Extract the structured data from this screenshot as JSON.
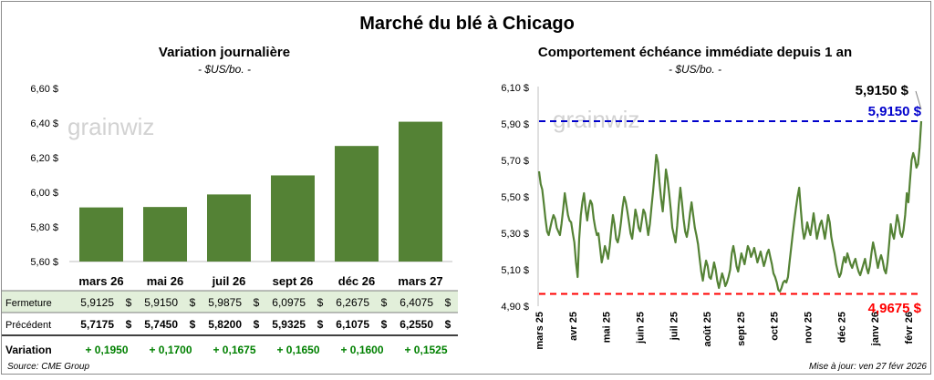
{
  "title": "Marché du blé à Chicago",
  "source": "Source: CME Group",
  "update": "Mise à jour: ven 27 févr 2026",
  "watermark": "grainwiz",
  "colors": {
    "bar": "#548235",
    "line": "#548235",
    "high_line": "#0000cc",
    "low_line": "#ff0000",
    "positive": "#008000",
    "fermeture_bg": "#e2efda"
  },
  "chart_data": [
    {
      "type": "bar",
      "title": "Variation journalière",
      "subtitle": "- $US/bo. -",
      "categories": [
        "mars 26",
        "mai 26",
        "juil 26",
        "sept 26",
        "déc 26",
        "mars 27"
      ],
      "values": [
        5.9125,
        5.915,
        5.9875,
        6.0975,
        6.2675,
        6.4075
      ],
      "ylim": [
        5.6,
        6.6
      ],
      "yticks": [
        5.6,
        5.8,
        6.0,
        6.2,
        6.4,
        6.6
      ],
      "ytick_labels": [
        "5,60 $",
        "5,80 $",
        "6,00 $",
        "6,20 $",
        "6,40 $",
        "6,60 $"
      ],
      "grid": false,
      "table": {
        "rows": [
          {
            "label": "Fermeture",
            "values": [
              "5,9125",
              "5,9150",
              "5,9875",
              "6,0975",
              "6,2675",
              "6,4075"
            ],
            "unit": "$"
          },
          {
            "label": "Précédent",
            "values": [
              "5,7175",
              "5,7450",
              "5,8200",
              "5,9325",
              "6,1075",
              "6,2550"
            ],
            "unit": "$"
          },
          {
            "label": "Variation",
            "values": [
              "+ 0,1950",
              "+ 0,1700",
              "+ 0,1675",
              "+ 0,1650",
              "+ 0,1600",
              "+ 0,1525"
            ],
            "unit": ""
          }
        ]
      }
    },
    {
      "type": "line",
      "title": "Comportement échéance immédiate depuis 1 an",
      "subtitle": "- $US/bo. -",
      "ylim": [
        4.9,
        6.1
      ],
      "yticks": [
        4.9,
        5.1,
        5.3,
        5.5,
        5.7,
        5.9,
        6.1
      ],
      "ytick_labels": [
        "4,90 $",
        "5,10 $",
        "5,30 $",
        "5,50 $",
        "5,70 $",
        "5,90 $",
        "6,10 $"
      ],
      "x_tick_labels": [
        "mars 25",
        "avr 25",
        "mai 25",
        "juin 25",
        "juil 25",
        "août 25",
        "sept 25",
        "oct 25",
        "nov 25",
        "déc 25",
        "janv 26",
        "févr 26"
      ],
      "grid": false,
      "last_value_label": "5,9150 $",
      "high": {
        "value": 5.915,
        "label": "5,9150 $"
      },
      "low": {
        "value": 4.9675,
        "label": "4,9675 $"
      },
      "values": [
        5.64,
        5.57,
        5.54,
        5.46,
        5.38,
        5.31,
        5.29,
        5.33,
        5.37,
        5.4,
        5.38,
        5.33,
        5.31,
        5.29,
        5.35,
        5.43,
        5.52,
        5.46,
        5.4,
        5.37,
        5.36,
        5.3,
        5.25,
        5.14,
        5.06,
        5.27,
        5.4,
        5.47,
        5.52,
        5.43,
        5.37,
        5.44,
        5.48,
        5.46,
        5.38,
        5.33,
        5.29,
        5.3,
        5.22,
        5.14,
        5.18,
        5.23,
        5.2,
        5.16,
        5.23,
        5.32,
        5.4,
        5.35,
        5.27,
        5.25,
        5.29,
        5.36,
        5.44,
        5.5,
        5.47,
        5.42,
        5.36,
        5.3,
        5.27,
        5.35,
        5.43,
        5.39,
        5.33,
        5.31,
        5.37,
        5.43,
        5.41,
        5.35,
        5.29,
        5.35,
        5.44,
        5.53,
        5.63,
        5.73,
        5.69,
        5.58,
        5.49,
        5.42,
        5.52,
        5.65,
        5.6,
        5.52,
        5.43,
        5.33,
        5.29,
        5.25,
        5.34,
        5.46,
        5.55,
        5.47,
        5.38,
        5.31,
        5.28,
        5.33,
        5.41,
        5.47,
        5.4,
        5.33,
        5.29,
        5.24,
        5.16,
        5.09,
        5.04,
        5.1,
        5.15,
        5.12,
        5.06,
        5.05,
        5.09,
        5.14,
        5.1,
        5.04,
        5.0,
        5.04,
        5.08,
        5.05,
        5.01,
        5.03,
        5.06,
        5.1,
        5.19,
        5.23,
        5.18,
        5.12,
        5.09,
        5.14,
        5.19,
        5.16,
        5.13,
        5.18,
        5.23,
        5.21,
        5.17,
        5.19,
        5.22,
        5.18,
        5.14,
        5.17,
        5.2,
        5.16,
        5.12,
        5.15,
        5.19,
        5.21,
        5.17,
        5.13,
        5.08,
        5.06,
        5.03,
        4.99,
        4.98,
        5.0,
        5.03,
        5.04,
        5.03,
        5.06,
        5.14,
        5.22,
        5.3,
        5.37,
        5.44,
        5.5,
        5.55,
        5.43,
        5.33,
        5.27,
        5.3,
        5.36,
        5.32,
        5.29,
        5.35,
        5.41,
        5.34,
        5.27,
        5.31,
        5.35,
        5.37,
        5.32,
        5.27,
        5.33,
        5.4,
        5.36,
        5.28,
        5.23,
        5.19,
        5.13,
        5.09,
        5.06,
        5.08,
        5.13,
        5.17,
        5.14,
        5.19,
        5.16,
        5.13,
        5.11,
        5.14,
        5.16,
        5.12,
        5.09,
        5.07,
        5.1,
        5.13,
        5.16,
        5.11,
        5.08,
        5.12,
        5.19,
        5.25,
        5.21,
        5.16,
        5.11,
        5.15,
        5.18,
        5.15,
        5.1,
        5.08,
        5.14,
        5.24,
        5.35,
        5.3,
        5.27,
        5.33,
        5.4,
        5.36,
        5.3,
        5.28,
        5.32,
        5.4,
        5.52,
        5.47,
        5.59,
        5.7,
        5.74,
        5.71,
        5.66,
        5.68,
        5.77,
        5.915
      ]
    }
  ]
}
